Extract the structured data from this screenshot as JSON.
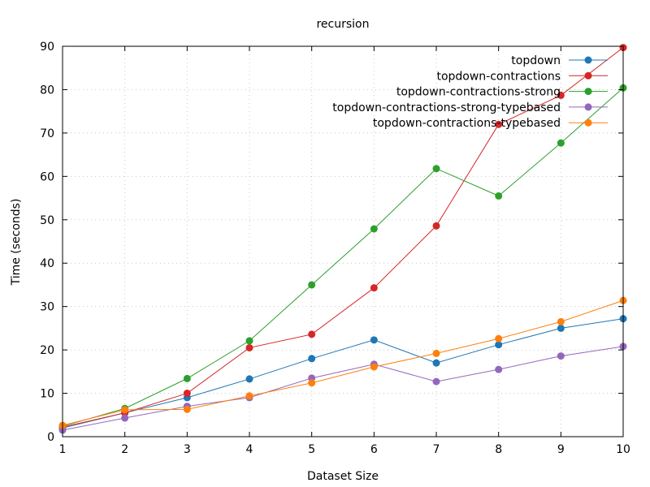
{
  "chart_data": {
    "type": "line",
    "title": "recursion",
    "xlabel": "Dataset Size",
    "ylabel": "Time (seconds)",
    "xlim": [
      1,
      10
    ],
    "ylim": [
      0,
      90
    ],
    "x_ticks": [
      1,
      2,
      3,
      4,
      5,
      6,
      7,
      8,
      9,
      10
    ],
    "y_ticks": [
      0,
      10,
      20,
      30,
      40,
      50,
      60,
      70,
      80,
      90
    ],
    "grid": true,
    "legend_position": "top-right",
    "x": [
      1,
      2,
      3,
      4,
      5,
      6,
      7,
      8,
      9,
      10
    ],
    "series": [
      {
        "name": "topdown",
        "color": "#1f77b4",
        "values": [
          2.0,
          5.5,
          9.0,
          13.3,
          18.0,
          22.3,
          17.0,
          21.2,
          25.0,
          27.2
        ]
      },
      {
        "name": "topdown-contractions",
        "color": "#d62728",
        "values": [
          2.2,
          5.5,
          10.0,
          20.5,
          23.6,
          34.3,
          48.6,
          72.0,
          78.7,
          89.7
        ]
      },
      {
        "name": "topdown-contractions-strong",
        "color": "#2ca02c",
        "values": [
          2.4,
          6.5,
          13.4,
          22.1,
          35.0,
          47.9,
          61.8,
          55.5,
          67.7,
          80.4
        ]
      },
      {
        "name": "topdown-contractions-strong-typebased",
        "color": "#9467bd",
        "values": [
          1.5,
          4.3,
          7.0,
          9.0,
          13.5,
          16.7,
          12.7,
          15.5,
          18.6,
          20.8
        ]
      },
      {
        "name": "topdown-contractions-typebased",
        "color": "#ff7f0e",
        "values": [
          2.6,
          6.2,
          6.3,
          9.4,
          12.4,
          16.1,
          19.2,
          22.6,
          26.5,
          31.4
        ]
      }
    ]
  }
}
